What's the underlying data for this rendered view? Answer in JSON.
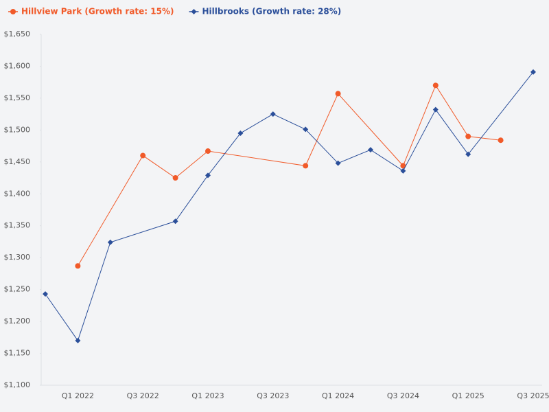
{
  "chart_data": {
    "type": "line",
    "categories": [
      null,
      "Q1 2022",
      null,
      "Q3 2022",
      null,
      "Q1 2023",
      null,
      "Q3 2023",
      null,
      "Q1 2024",
      null,
      "Q3 2024",
      null,
      "Q1 2025",
      null,
      "Q3 2025"
    ],
    "series": [
      {
        "name": "Hillview Park (Growth rate: 15%)",
        "color": "#f15a29",
        "marker": "circle",
        "values": [
          null,
          1287,
          null,
          1460,
          1425,
          1467,
          null,
          null,
          1444,
          1557,
          null,
          1444,
          1570,
          1490,
          1484,
          null
        ]
      },
      {
        "name": "Hillbrooks (Growth rate: 28%)",
        "color": "#2b4f9a",
        "marker": "diamond",
        "values": [
          1243,
          1170,
          1324,
          null,
          1357,
          1429,
          1495,
          1525,
          1501,
          1448,
          1469,
          1436,
          1532,
          1462,
          null,
          1591
        ]
      }
    ],
    "ylim": [
      1100,
      1650
    ],
    "yticks": [
      {
        "value": 1100,
        "label": "$1,100"
      },
      {
        "value": 1150,
        "label": "$1,150"
      },
      {
        "value": 1200,
        "label": "$1,200"
      },
      {
        "value": 1250,
        "label": "$1,250"
      },
      {
        "value": 1300,
        "label": "$1,300"
      },
      {
        "value": 1350,
        "label": "$1,350"
      },
      {
        "value": 1400,
        "label": "$1,400"
      },
      {
        "value": 1450,
        "label": "$1,450"
      },
      {
        "value": 1500,
        "label": "$1,500"
      },
      {
        "value": 1550,
        "label": "$1,550"
      },
      {
        "value": 1600,
        "label": "$1,600"
      },
      {
        "value": 1650,
        "label": "$1,650"
      }
    ],
    "grid": false,
    "legend": "top-left"
  }
}
